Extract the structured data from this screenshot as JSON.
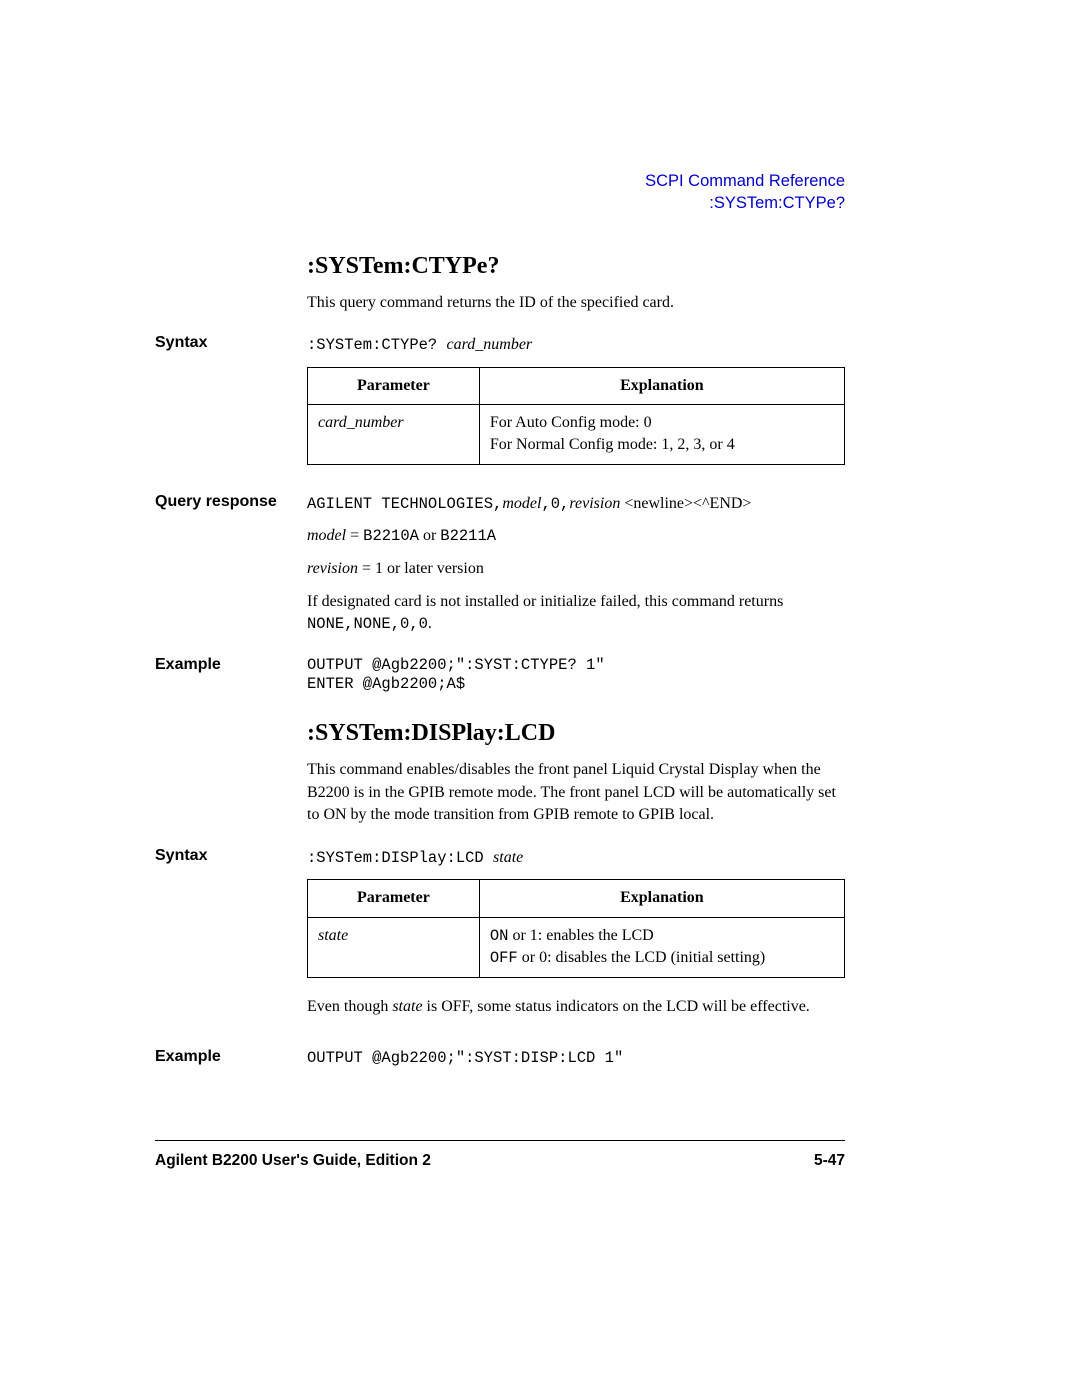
{
  "header": {
    "line1": "SCPI Command Reference",
    "line2": ":SYSTem:CTYPe?"
  },
  "section1": {
    "heading": ":SYSTem:CTYPe?",
    "description": "This query command returns the ID of the specified card.",
    "syntax_label": "Syntax",
    "syntax_cmd": ":SYSTem:CTYPe? ",
    "syntax_arg": "card_number",
    "table": {
      "h1": "Parameter",
      "h2": "Explanation",
      "p1": "card_number",
      "e1a": "For Auto Config mode: 0",
      "e1b": "For Normal Config mode: 1, 2, 3, or 4"
    },
    "qr_label": "Query response",
    "qr_line_pre": "AGILENT TECHNOLOGIES,",
    "qr_model": "model",
    "qr_mid1": ",0,",
    "qr_rev": "revision",
    "qr_post": " <newline><^END>",
    "model_eq_i": "model",
    "model_eq_t": " = ",
    "model_eq_m": "B2210A",
    "model_eq_or": " or ",
    "model_eq_m2": "B2211A",
    "rev_eq_i": "revision",
    "rev_eq_t": " = 1 or later version",
    "fail_pre": "If designated card is not installed or initialize failed, this command returns ",
    "fail_mono": "NONE,NONE,0,0",
    "fail_post": ".",
    "ex_label": "Example",
    "ex1": "OUTPUT @Agb2200;\":SYST:CTYPE? 1\"",
    "ex2": "ENTER @Agb2200;A$"
  },
  "section2": {
    "heading": ":SYSTem:DISPlay:LCD",
    "description": "This command enables/disables the front panel Liquid Crystal Display when the B2200 is in the GPIB remote mode. The front panel LCD will be automatically set to ON by the mode transition from GPIB remote to GPIB local.",
    "syntax_label": "Syntax",
    "syntax_cmd": ":SYSTem:DISPlay:LCD ",
    "syntax_arg": "state",
    "table": {
      "h1": "Parameter",
      "h2": "Explanation",
      "p1": "state",
      "e1a_m": "ON",
      "e1a_t": " or 1: enables the LCD",
      "e1b_m": "OFF",
      "e1b_t": " or 0: disables the LCD (initial setting)"
    },
    "note_pre": "Even though ",
    "note_i": "state",
    "note_post": " is OFF, some status indicators on the LCD will be effective.",
    "ex_label": "Example",
    "ex1": "OUTPUT @Agb2200;\":SYST:DISP:LCD 1\""
  },
  "footer": {
    "left": "Agilent B2200 User's Guide, Edition 2",
    "right": "5-47"
  }
}
